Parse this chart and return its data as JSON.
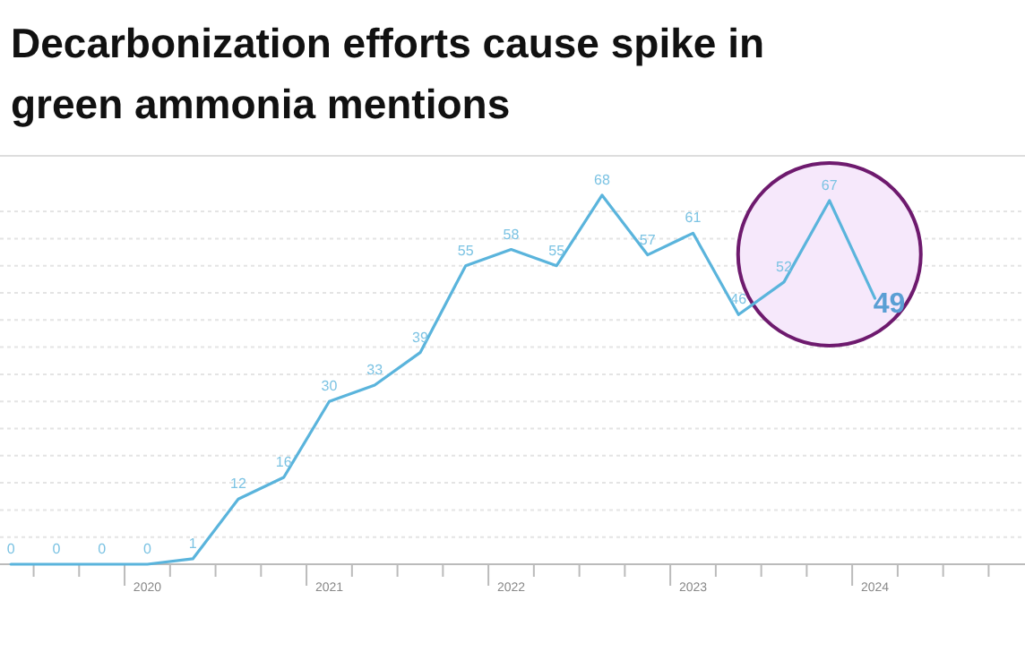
{
  "chart_data": {
    "type": "line",
    "title": "Decarbonization efforts cause spike in green ammonia mentions",
    "categories": [
      null,
      null,
      null,
      "2020",
      null,
      null,
      null,
      "2021",
      null,
      null,
      null,
      "2022",
      null,
      null,
      null,
      "2023",
      null,
      null,
      null,
      "2024"
    ],
    "series": [
      {
        "color": "#5ab4dc",
        "values": [
          0,
          0,
          0,
          0,
          1,
          12,
          16,
          30,
          33,
          39,
          55,
          58,
          55,
          68,
          57,
          61,
          46,
          52,
          67,
          49
        ]
      }
    ],
    "yticks": [
      {
        "value": 0,
        "label": null
      },
      {
        "value": 5,
        "label": null
      },
      {
        "value": 10,
        "label": null
      },
      {
        "value": 15,
        "label": null
      },
      {
        "value": 20,
        "label": null
      },
      {
        "value": 25,
        "label": null
      },
      {
        "value": 30,
        "label": null
      },
      {
        "value": 35,
        "label": null
      },
      {
        "value": 40,
        "label": null
      },
      {
        "value": 45,
        "label": null
      },
      {
        "value": 50,
        "label": null
      },
      {
        "value": 55,
        "label": null
      },
      {
        "value": 60,
        "label": null
      },
      {
        "value": 65,
        "label": null
      }
    ],
    "grid": "y",
    "data_labels": true,
    "tick_labels": "x",
    "marker": "none",
    "line_style": "solid"
  }
}
